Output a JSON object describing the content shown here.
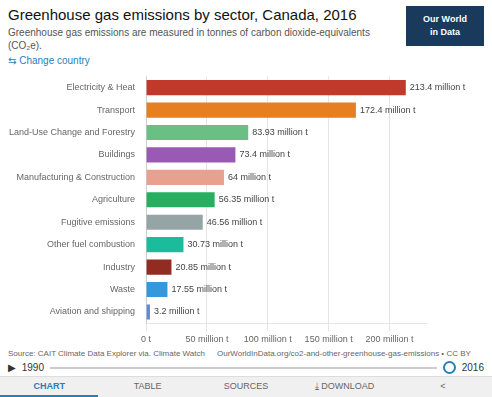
{
  "chart_data": {
    "type": "bar",
    "orientation": "horizontal",
    "title": "Greenhouse gas emissions by sector, Canada, 2016",
    "subtitle": "Greenhouse gas emissions are measured in tonnes of carbon dioxide-equivalents (CO₂e).",
    "categories": [
      "Electricity & Heat",
      "Transport",
      "Land-Use Change and Forestry",
      "Buildings",
      "Manufacturing & Construction",
      "Agriculture",
      "Fugitive emissions",
      "Other fuel combustion",
      "Industry",
      "Waste",
      "Aviation and shipping"
    ],
    "values": [
      213.4,
      172.4,
      83.93,
      73.4,
      64.0,
      56.35,
      46.56,
      30.73,
      20.85,
      17.55,
      3.2
    ],
    "value_labels": [
      "213.4 million t",
      "172.4 million t",
      "83.93 million t",
      "73.4 million t",
      "64 million t",
      "56.35 million t",
      "46.56 million t",
      "30.73 million t",
      "20.85 million t",
      "17.55 million t",
      "3.2 million t"
    ],
    "colors": [
      "#c0392b",
      "#e67e22",
      "#6abf85",
      "#9b59b6",
      "#e8a090",
      "#27ae60",
      "#95a5a6",
      "#1abc9c",
      "#922b21",
      "#3498db",
      "#5b8dd9"
    ],
    "data_labels": true,
    "xlim": [
      0,
      230
    ],
    "xticks": [
      {
        "value": 0,
        "label": "0 t"
      },
      {
        "value": 50,
        "label": "50 million t"
      },
      {
        "value": 100,
        "label": "100 million t"
      },
      {
        "value": 150,
        "label": "150 million t"
      },
      {
        "value": 200,
        "label": "200 million t"
      }
    ],
    "grid": true,
    "annotations": [
      "⇆ Change country",
      "Our World\nin Data",
      "Source: CAIT Climate Data Explorer via. Climate Watch",
      "OurWorldInData.org/co2-and-other-greenhouse-gas-emissions • CC BY",
      "▶",
      "1990",
      "2016",
      "CHART",
      "TABLE",
      "SOURCES",
      "⤓ DOWNLOAD",
      "<"
    ]
  }
}
